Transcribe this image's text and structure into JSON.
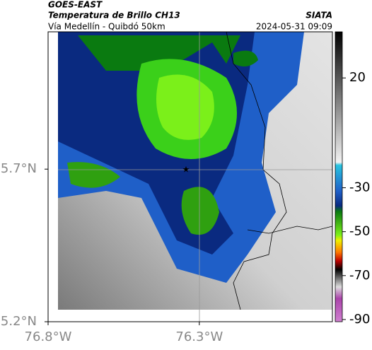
{
  "header": {
    "source": "GOES-EAST",
    "title": "Temperatura de Brillo CH13",
    "brand": "SIATA",
    "subtitle": "Vía Medellín - Quibdó 50km",
    "timestamp": "2024-05-31 09:09"
  },
  "map": {
    "xlim": [
      -76.8,
      -75.86
    ],
    "ylim": [
      5.2,
      6.15
    ],
    "xticks": [
      {
        "value": -76.8,
        "label": "76.8°W"
      },
      {
        "value": -76.3,
        "label": "76.3°W"
      }
    ],
    "yticks": [
      {
        "value": 5.2,
        "label": "5.2°N"
      },
      {
        "value": 5.7,
        "label": "5.7°N"
      }
    ]
  },
  "colorbar": {
    "lim": [
      -91,
      41
    ],
    "ticks": [
      20,
      -30,
      -50,
      -70,
      -90
    ]
  }
}
